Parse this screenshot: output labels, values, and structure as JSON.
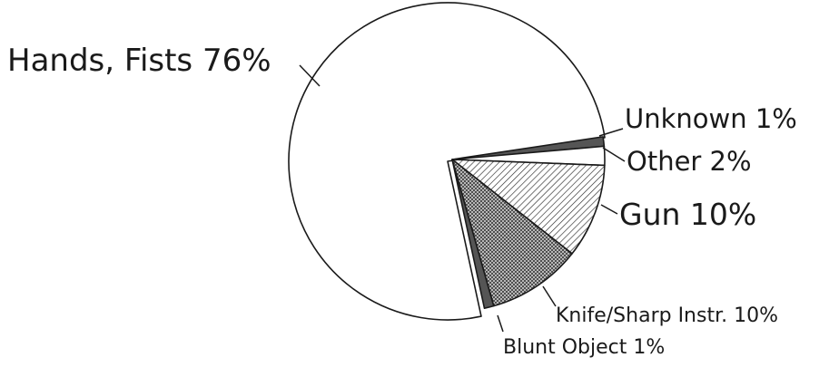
{
  "chart_data": {
    "type": "pie",
    "title": "",
    "categories": [
      "Hands, Fists",
      "Unknown",
      "Other",
      "Gun",
      "Knife/Sharp Instr.",
      "Blunt Object"
    ],
    "values": [
      76,
      1,
      2,
      10,
      10,
      1
    ],
    "unit": "%",
    "labels": [
      "Hands, Fists 76%",
      "Unknown 1%",
      "Other 2%",
      "Gun 10%",
      "Knife/Sharp Instr. 10%",
      "Blunt Object 1%"
    ],
    "slices": [
      {
        "label": "Hands, Fists 76%",
        "value": 76,
        "fill": "white"
      },
      {
        "label": "Unknown 1%",
        "value": 1,
        "fill": "solid-dark"
      },
      {
        "label": "Other 2%",
        "value": 2,
        "fill": "white"
      },
      {
        "label": "Gun 10%",
        "value": 10,
        "fill": "diagonal-hatch"
      },
      {
        "label": "Knife/Sharp Instr. 10%",
        "value": 10,
        "fill": "crosshatch"
      },
      {
        "label": "Blunt Object 1%",
        "value": 1,
        "fill": "solid-dark"
      }
    ],
    "exploded_slices": [
      "Unknown 1%",
      "Other 2%",
      "Gun 10%",
      "Knife/Sharp Instr. 10%",
      "Blunt Object 1%"
    ],
    "legend": "none",
    "colors": {
      "outline": "#1a1a1a",
      "dark_fill": "#555555",
      "background": "#ffffff"
    }
  }
}
